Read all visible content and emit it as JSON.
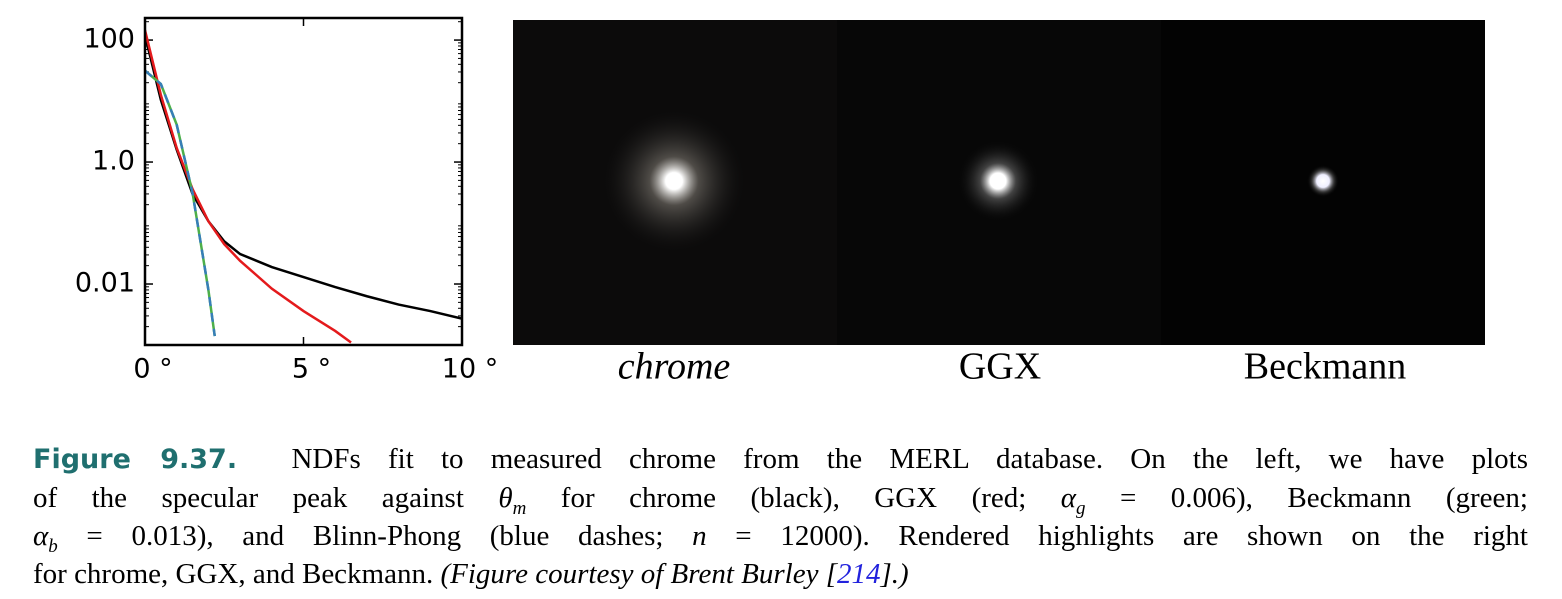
{
  "chart_data": {
    "type": "line",
    "log_y": true,
    "xlim": [
      0,
      10
    ],
    "xticks": [
      {
        "value": 0,
        "label": "0 °"
      },
      {
        "value": 5,
        "label": "5 °"
      },
      {
        "value": 10,
        "label": "10 °"
      }
    ],
    "ylim": [
      0.001,
      230
    ],
    "yticks": [
      100,
      {
        "value": 1,
        "label": "1.0"
      },
      0.01
    ],
    "series": [
      {
        "name": "chrome",
        "color": "#000000",
        "dash": false,
        "x": [
          0,
          0.5,
          1,
          1.5,
          2,
          2.5,
          3,
          4,
          5,
          6,
          7,
          8,
          9,
          10
        ],
        "values": [
          120,
          10.5,
          1.6,
          0.3,
          0.107,
          0.05,
          0.031,
          0.019,
          0.013,
          0.0089,
          0.0063,
          0.0046,
          0.0036,
          0.0027
        ]
      },
      {
        "name": "GGX",
        "color": "#e41a1c",
        "dash": false,
        "x": [
          0,
          0.5,
          1,
          1.5,
          2,
          2.5,
          3,
          4,
          5,
          6,
          6.5
        ],
        "values": [
          145,
          12.6,
          1.7,
          0.36,
          0.107,
          0.045,
          0.024,
          0.0084,
          0.0036,
          0.0017,
          0.0011
        ]
      },
      {
        "name": "Beckmann",
        "color": "#4daf4a",
        "dash": false,
        "x": [
          0,
          0.5,
          1,
          1.5,
          2,
          2.2
        ],
        "values": [
          31.6,
          19,
          4.1,
          0.31,
          0.008,
          0.0014
        ]
      },
      {
        "name": "Blinn-Phong",
        "color": "#377eb8",
        "dash": true,
        "x": [
          0,
          0.5,
          1,
          1.5,
          2,
          2.2
        ],
        "values": [
          31.6,
          19,
          4.1,
          0.31,
          0.008,
          0.0014
        ]
      }
    ]
  },
  "images": {
    "labels": [
      "chrome",
      "GGX",
      "Beckmann"
    ]
  },
  "caption": {
    "label": "Figure 9.37.",
    "l1": "NDFs fit to measured chrome from the MERL database. On the left, we have plots",
    "l2a": "of the specular peak against ",
    "theta": "θ",
    "sub_m": "m",
    "l2b": " for chrome (black), GGX (red; ",
    "alpha1": "α",
    "sub_g": "g",
    "l2c": " = 0.006), Beckmann (green;",
    "alpha2": "α",
    "sub_b": "b",
    "l3a": " = 0.013), and Blinn-Phong (blue dashes; ",
    "n": "n",
    "l3b": " = 12000). Rendered highlights are shown on the right",
    "l4a": "for chrome, GGX, and Beckmann. ",
    "l4b": "(Figure courtesy of Brent Burley [",
    "ref": "214",
    "l4c": "].)"
  }
}
